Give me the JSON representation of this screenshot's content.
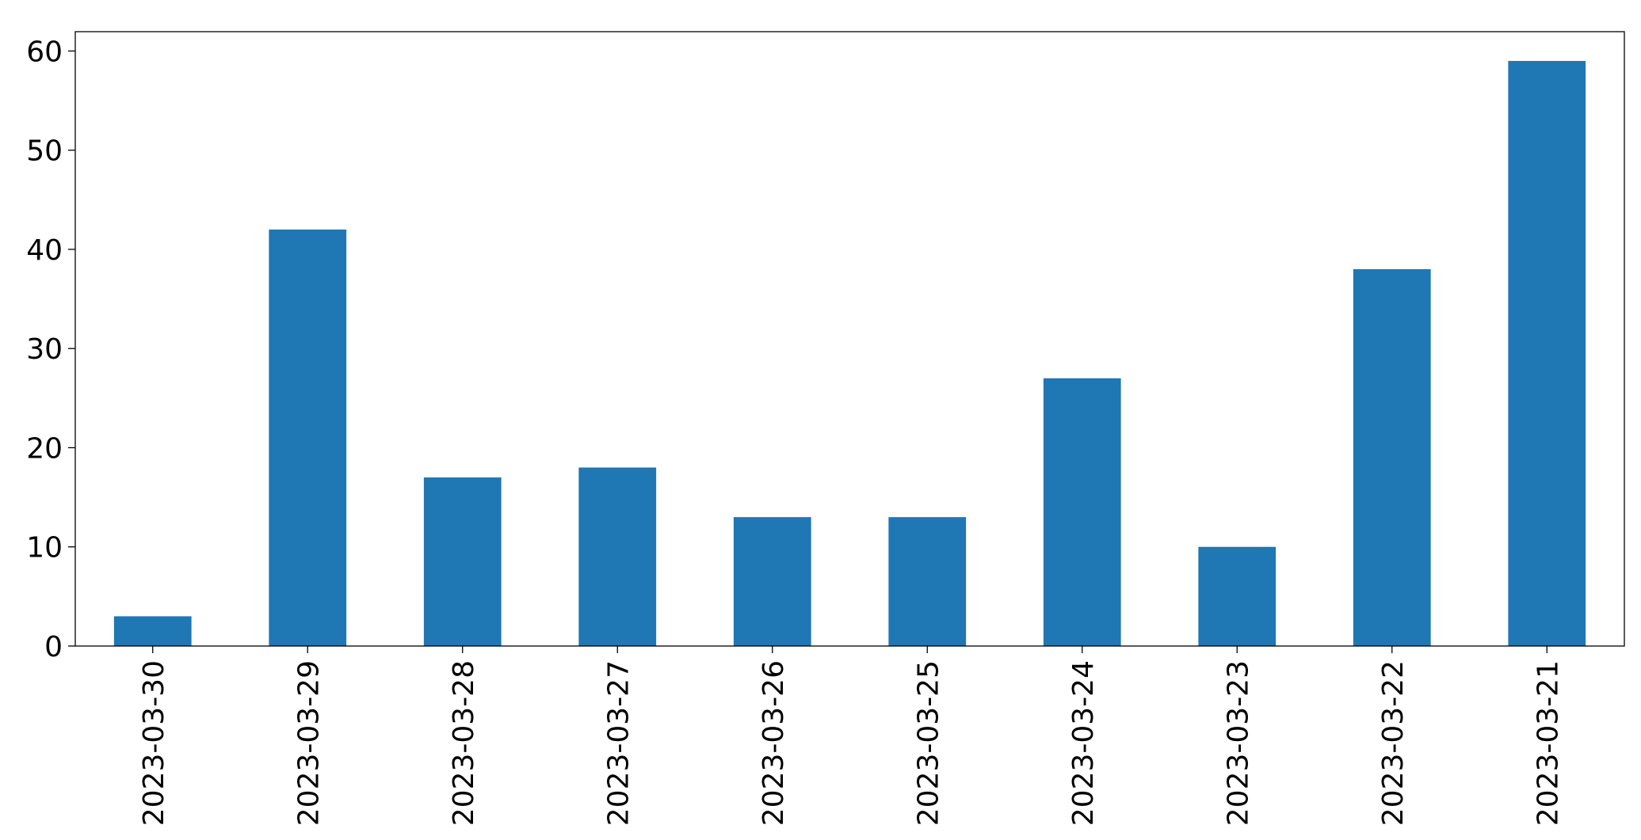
{
  "chart_data": {
    "type": "bar",
    "categories": [
      "2023-03-30",
      "2023-03-29",
      "2023-03-28",
      "2023-03-27",
      "2023-03-26",
      "2023-03-25",
      "2023-03-24",
      "2023-03-23",
      "2023-03-22",
      "2023-03-21"
    ],
    "values": [
      3,
      42,
      17,
      18,
      13,
      13,
      27,
      10,
      38,
      59
    ],
    "color": "#1f77b4",
    "ylim": [
      0,
      61.95
    ],
    "yticks": [
      0,
      10,
      20,
      30,
      40,
      50,
      60
    ],
    "grid": false
  }
}
